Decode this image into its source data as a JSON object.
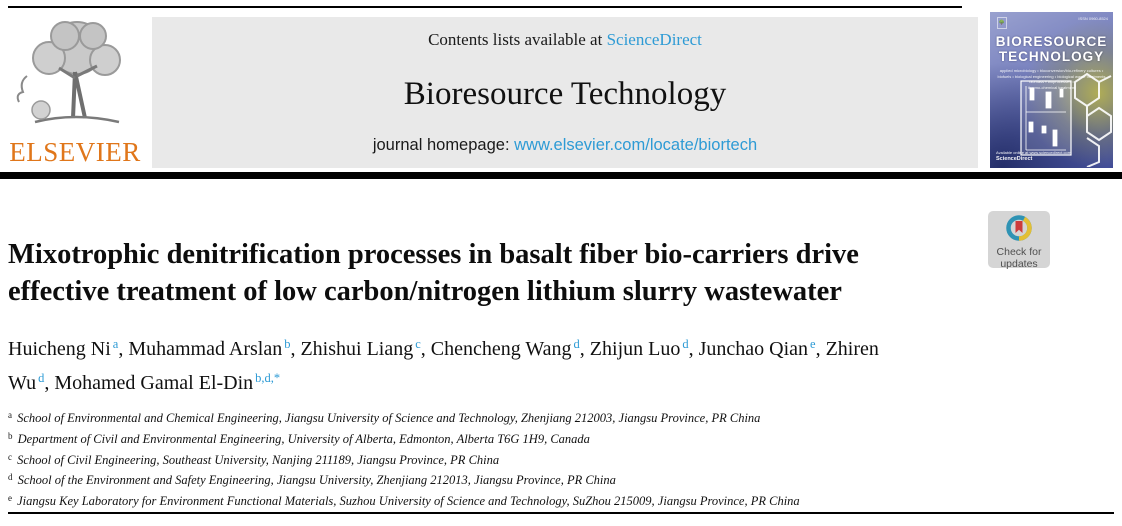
{
  "colors": {
    "link_blue": "#2e9bd5",
    "elsevier_orange": "#e0761a",
    "banner_gray": "#e9e9e9"
  },
  "header": {
    "contents_prefix": "Contents lists available at ",
    "sciencedirect_label": "ScienceDirect",
    "journal_title": "Bioresource Technology",
    "homepage_prefix": "journal homepage: ",
    "homepage_url": "www.elsevier.com/locate/biortech",
    "publisher_wordmark": "ELSEVIER"
  },
  "cover": {
    "issn": "ISSN 0960-8524",
    "name_line1": "BIORESOURCE",
    "name_line2": "TECHNOLOGY",
    "subtitle_lines": [
      "applied microbiology • bioconversion/bio-refinery cultures •",
      "biofuels • biological engineering • biological waste treatments",
      "biomass • bioprocesses •",
      "thermo-chemical treatment"
    ],
    "footer_lines": [
      "Available online at www.sciencedirect.com",
      "ScienceDirect"
    ]
  },
  "badge": {
    "line1": "Check for",
    "line2": "updates"
  },
  "article": {
    "title_lines": [
      "Mixotrophic denitrification processes in basalt fiber bio-carriers drive",
      "effective treatment of low carbon/nitrogen lithium slurry wastewater"
    ],
    "authors": [
      {
        "name": "Huicheng Ni",
        "sup": "a"
      },
      {
        "name": "Muhammad Arslan",
        "sup": "b"
      },
      {
        "name": "Zhishui Liang",
        "sup": "c"
      },
      {
        "name": "Chencheng Wang",
        "sup": "d"
      },
      {
        "name": "Zhijun Luo",
        "sup": "d"
      },
      {
        "name": "Junchao Qian",
        "sup": "e"
      },
      {
        "name": "Zhiren Wu",
        "sup": "d"
      },
      {
        "name": "Mohamed Gamal El-Din",
        "sup": "b,d,*"
      }
    ],
    "affiliations": [
      {
        "sup": "a",
        "text": "School of Environmental and Chemical Engineering, Jiangsu University of Science and Technology, Zhenjiang 212003, Jiangsu Province, PR China"
      },
      {
        "sup": "b",
        "text": "Department of Civil and Environmental Engineering, University of Alberta, Edmonton, Alberta T6G 1H9, Canada"
      },
      {
        "sup": "c",
        "text": "School of Civil Engineering, Southeast University, Nanjing 211189, Jiangsu Province, PR China"
      },
      {
        "sup": "d",
        "text": "School of the Environment and Safety Engineering, Jiangsu University, Zhenjiang 212013, Jiangsu Province, PR China"
      },
      {
        "sup": "e",
        "text": "Jiangsu Key Laboratory for Environment Functional Materials, Suzhou University of Science and Technology, SuZhou 215009, Jiangsu Province, PR China"
      }
    ]
  }
}
